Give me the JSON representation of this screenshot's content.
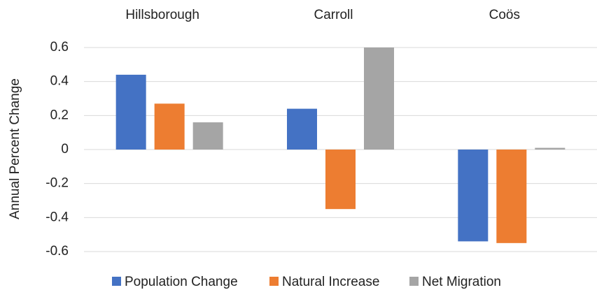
{
  "chart_data": {
    "type": "bar",
    "y_label": "Annual Percent Change",
    "categories": [
      "Hillsborough",
      "Carroll",
      "Coös"
    ],
    "series": [
      {
        "name": "Population Change",
        "color": "#4472c4",
        "values": [
          0.44,
          0.24,
          -0.54
        ]
      },
      {
        "name": "Natural Increase",
        "color": "#ed7d31",
        "values": [
          0.27,
          -0.35,
          -0.55
        ]
      },
      {
        "name": "Net Migration",
        "color": "#a5a5a5",
        "values": [
          0.16,
          0.6,
          0.01
        ]
      }
    ],
    "ylim": [
      -0.6,
      0.6
    ],
    "yticks": [
      -0.6,
      -0.4,
      -0.2,
      0,
      0.2,
      0.4,
      0.6
    ],
    "grid": true
  }
}
